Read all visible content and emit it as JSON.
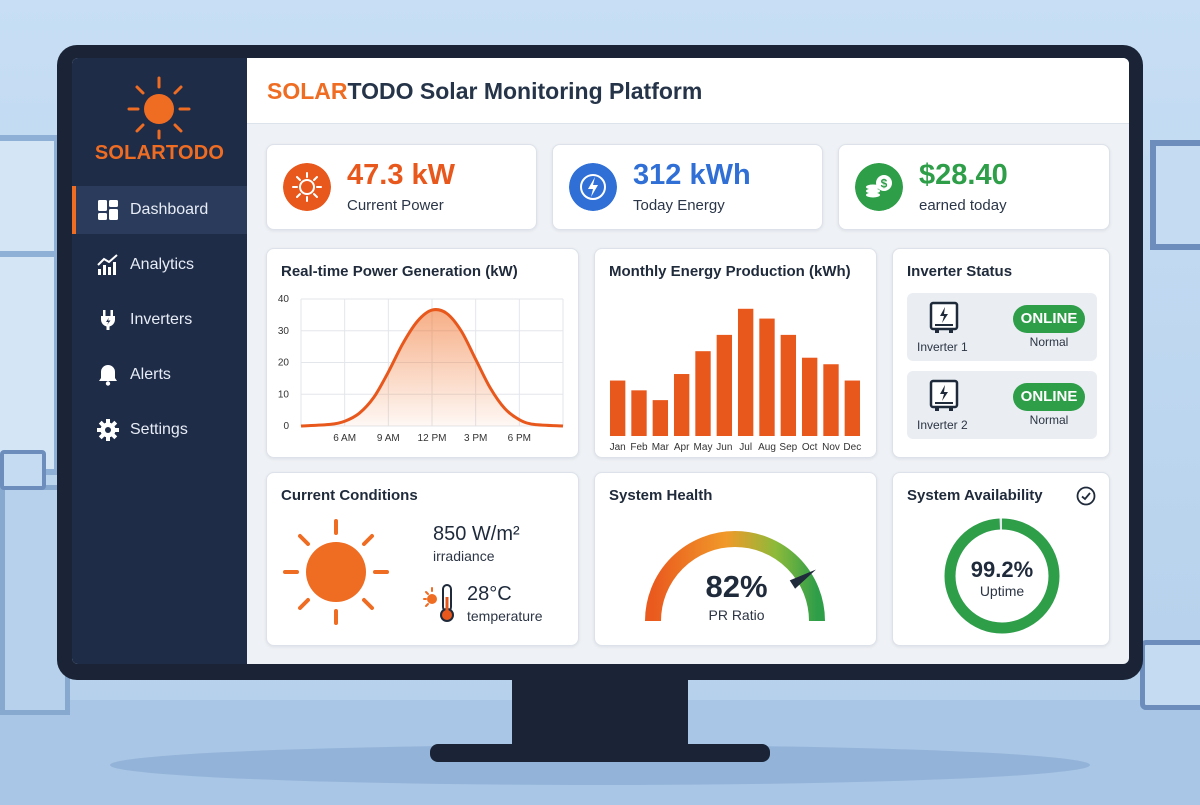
{
  "app": {
    "brand_left": "SOLAR",
    "brand_right": "TODO",
    "title_rest": "Solar Monitoring Platform"
  },
  "sidebar": {
    "items": [
      {
        "label": "Dashboard",
        "icon": "dashboard-icon",
        "active": true
      },
      {
        "label": "Analytics",
        "icon": "chart-icon",
        "active": false
      },
      {
        "label": "Inverters",
        "icon": "plug-icon",
        "active": false
      },
      {
        "label": "Alerts",
        "icon": "bell-icon",
        "active": false
      },
      {
        "label": "Settings",
        "icon": "gear-icon",
        "active": false
      }
    ]
  },
  "kpis": [
    {
      "value": "47.3 kW",
      "label": "Current Power",
      "color": "#e8581c",
      "icon": "sun-icon"
    },
    {
      "value": "312 kWh",
      "label": "Today Energy",
      "color": "#2f6fd6",
      "icon": "lightning-icon"
    },
    {
      "value": "$28.40",
      "label": "earned today",
      "color": "#2e9e49",
      "icon": "coins-icon"
    }
  ],
  "realtime": {
    "title": "Real-time Power Generation (kW)"
  },
  "monthly": {
    "title": "Monthly Energy Production (kWh)"
  },
  "inverter_status": {
    "title": "Inverter Status",
    "items": [
      {
        "name": "Inverter 1",
        "badge": "ONLINE",
        "state": "Normal"
      },
      {
        "name": "Inverter 2",
        "badge": "ONLINE",
        "state": "Normal"
      }
    ]
  },
  "conditions": {
    "title": "Current Conditions",
    "irradiance_value": "850 W/m²",
    "irradiance_label": "irradiance",
    "temperature_value": "28°C",
    "temperature_label": "temperature"
  },
  "health": {
    "title": "System Health",
    "value": "82%",
    "label": "PR Ratio",
    "fraction": 0.82
  },
  "availability": {
    "title": "System Availability",
    "value": "99.2%",
    "label": "Uptime",
    "fraction": 0.992
  },
  "colors": {
    "accent": "#ef6c23",
    "sidebar": "#1e2c48",
    "online": "#2e9e49"
  },
  "chart_data": [
    {
      "type": "area",
      "title": "Real-time Power Generation (kW)",
      "xlabel": "",
      "ylabel": "",
      "x_ticks": [
        "6 AM",
        "9 AM",
        "12 PM",
        "3 PM",
        "6 PM"
      ],
      "x_tick_hours": [
        6,
        9,
        12,
        15,
        18
      ],
      "y_ticks": [
        0,
        10,
        20,
        30,
        40
      ],
      "xlim": [
        3,
        21
      ],
      "ylim": [
        0,
        40
      ],
      "series": [
        {
          "x": [
            3,
            5,
            6,
            7,
            8,
            9,
            10,
            11,
            12,
            13,
            14,
            15,
            16,
            17,
            18,
            19,
            21
          ],
          "y": [
            0,
            0.5,
            1.5,
            4,
            9,
            17,
            26,
            33,
            36.5,
            35.5,
            30,
            21,
            12,
            5.5,
            2,
            0.5,
            0
          ]
        }
      ],
      "grid": true
    },
    {
      "type": "bar",
      "title": "Monthly Energy Production (kWh)",
      "categories": [
        "Jan",
        "Feb",
        "Mar",
        "Apr",
        "May",
        "Jun",
        "Jul",
        "Aug",
        "Sep",
        "Oct",
        "Nov",
        "Dec"
      ],
      "values": [
        17,
        14,
        11,
        19,
        26,
        31,
        39,
        36,
        31,
        24,
        22,
        17
      ],
      "ylim": [
        0,
        42
      ],
      "grid": false
    }
  ]
}
